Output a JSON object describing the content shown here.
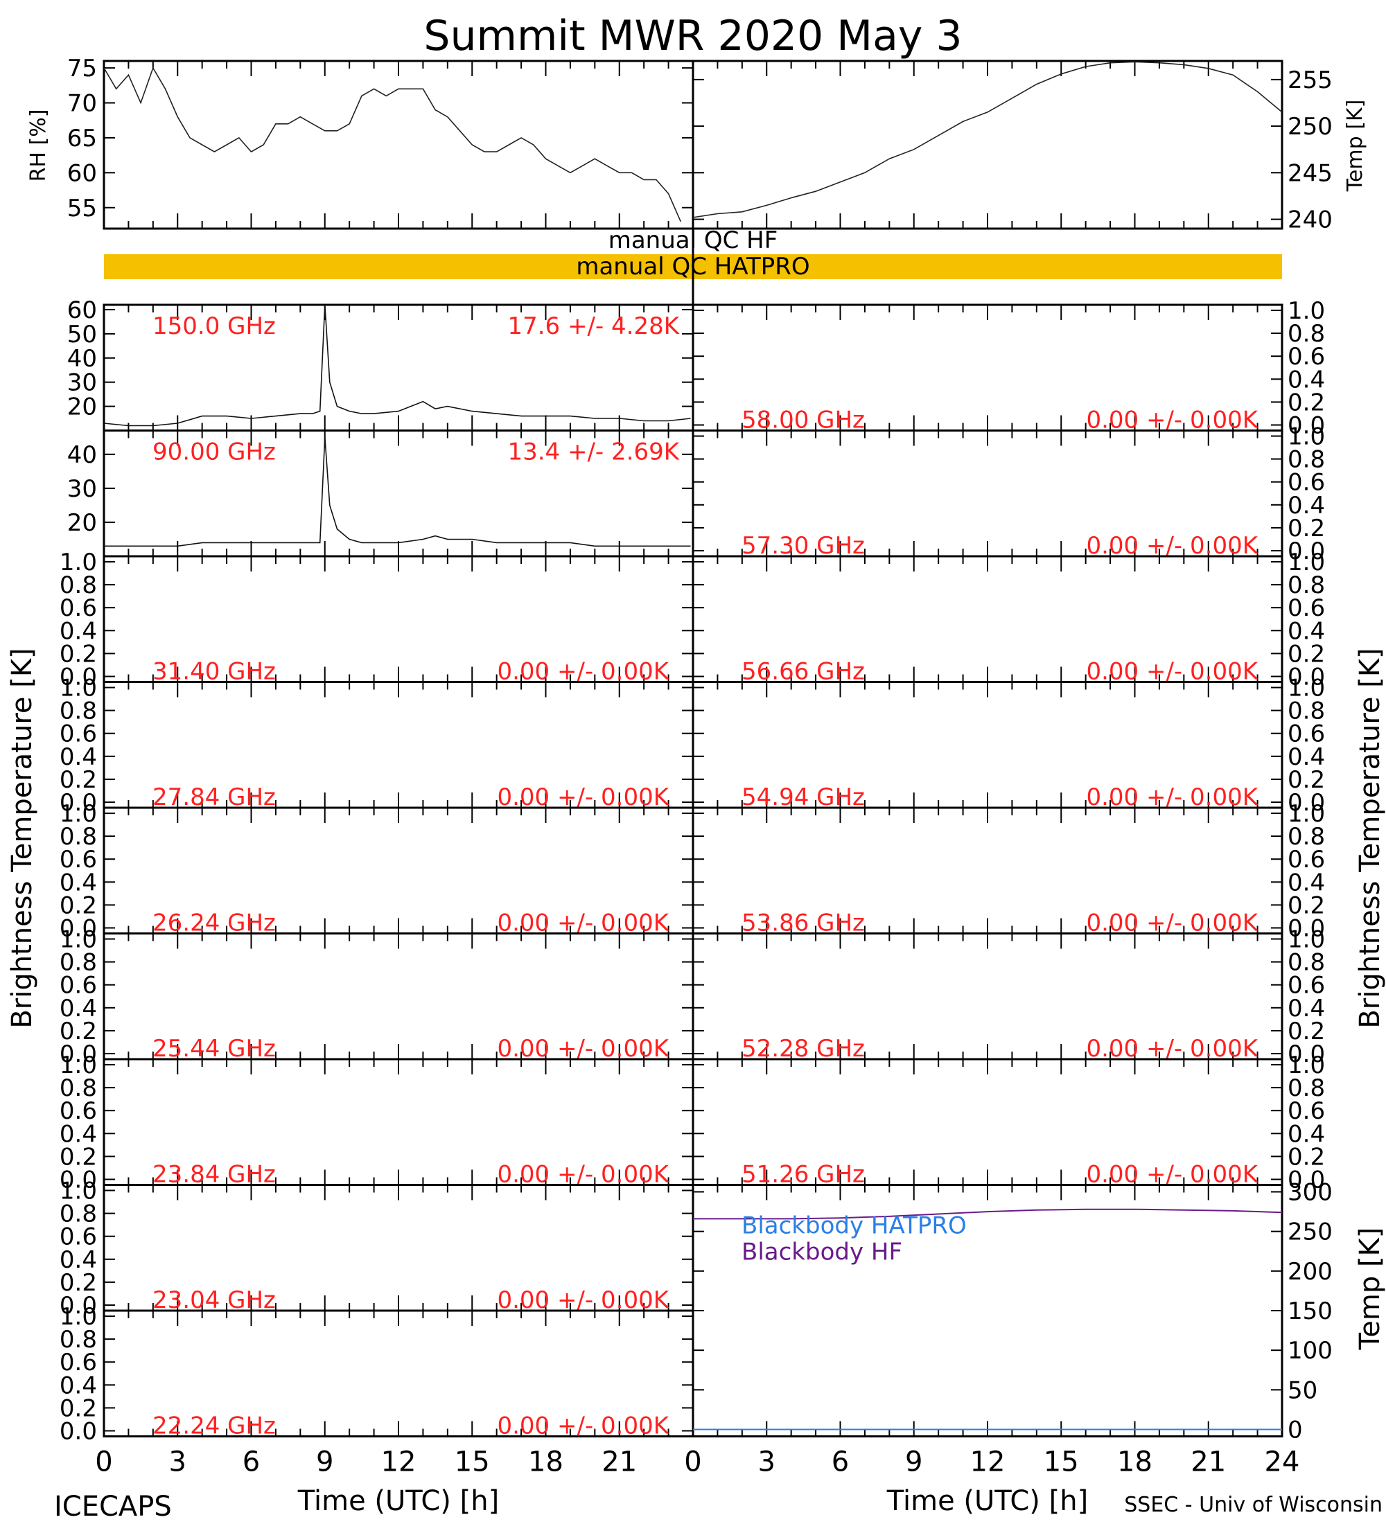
{
  "title": "Summit MWR 2020 May  3",
  "footer": {
    "left": "ICECAPS",
    "right": "SSEC - Univ of Wisconsin",
    "xlabel_left": "Time (UTC) [h]",
    "xlabel_right": "Time (UTC) [h]"
  },
  "qc": {
    "hf_label": "manual  QC  HF",
    "hatpro_label": "manual  QC  HATPRO",
    "hf_color": "#ffffff",
    "hatpro_color": "#f5c000"
  },
  "axis_labels": {
    "rh": "RH [%]",
    "temp_top": "Temp [K]",
    "tb_left": "Brightness Temperature [K]",
    "tb_right": "Brightness Temperature [K]",
    "temp_bb": "Temp [K]"
  },
  "x_ticks": [
    "0",
    "3",
    "6",
    "9",
    "12",
    "15",
    "18",
    "21"
  ],
  "x_ticks_right": [
    "0",
    "3",
    "6",
    "9",
    "12",
    "15",
    "18",
    "21",
    "24"
  ],
  "colors": {
    "channel_text": "#ff2020",
    "bb_hatpro": "#2a7fe8",
    "bb_hf": "#6a1a8a",
    "qc_bar": "#f5c000"
  },
  "left_channels": [
    {
      "freq": "150.0 GHz",
      "stats": "17.6 +/-  4.28K",
      "ylim": [
        10,
        62
      ],
      "ticks": [
        "60",
        "50",
        "40",
        "30",
        "20"
      ],
      "ticks_values": [
        60,
        50,
        40,
        30,
        20
      ]
    },
    {
      "freq": "90.00 GHz",
      "stats": "13.4 +/-  2.69K",
      "ylim": [
        10,
        47
      ],
      "ticks": [
        "40",
        "30",
        "20"
      ],
      "ticks_values": [
        40,
        30,
        20
      ]
    },
    {
      "freq": "31.40 GHz",
      "stats": "0.00 +/-  0.00K"
    },
    {
      "freq": "27.84 GHz",
      "stats": "0.00 +/-  0.00K"
    },
    {
      "freq": "26.24 GHz",
      "stats": "0.00 +/-  0.00K"
    },
    {
      "freq": "25.44 GHz",
      "stats": "0.00 +/-  0.00K"
    },
    {
      "freq": "23.84 GHz",
      "stats": "0.00 +/-  0.00K"
    },
    {
      "freq": "23.04 GHz",
      "stats": "0.00 +/-  0.00K"
    },
    {
      "freq": "22.24 GHz",
      "stats": "0.00 +/-  0.00K"
    }
  ],
  "right_channels": [
    {
      "freq": "58.00 GHz",
      "stats": "0.00 +/-  0.00K"
    },
    {
      "freq": "57.30 GHz",
      "stats": "0.00 +/-  0.00K"
    },
    {
      "freq": "56.66 GHz",
      "stats": "0.00 +/-  0.00K"
    },
    {
      "freq": "54.94 GHz",
      "stats": "0.00 +/-  0.00K"
    },
    {
      "freq": "53.86 GHz",
      "stats": "0.00 +/-  0.00K"
    },
    {
      "freq": "52.28 GHz",
      "stats": "0.00 +/-  0.00K"
    },
    {
      "freq": "51.26 GHz",
      "stats": "0.00 +/-  0.00K"
    }
  ],
  "unit_ticks": [
    "1.0",
    "0.8",
    "0.6",
    "0.4",
    "0.2",
    "0.0"
  ],
  "bb_legend": [
    "Blackbody HATPRO",
    "Blackbody HF"
  ],
  "chart_data": [
    {
      "type": "line",
      "title": "",
      "xlabel": "",
      "ylabel": "RH [%]",
      "xlim": [
        0,
        24
      ],
      "ylim": [
        52,
        76
      ],
      "yticks": [
        55,
        60,
        65,
        70,
        75
      ],
      "series": [
        {
          "name": "",
          "x": [
            0,
            0.5,
            1,
            1.5,
            2,
            2.5,
            3,
            3.5,
            4,
            4.5,
            5,
            5.5,
            6,
            6.5,
            7,
            7.5,
            8,
            8.5,
            9,
            9.5,
            10,
            10.5,
            11,
            11.5,
            12,
            12.5,
            13,
            13.5,
            14,
            14.5,
            15,
            15.5,
            16,
            16.5,
            17,
            17.5,
            18,
            18.5,
            19,
            19.5,
            20,
            20.5,
            21,
            21.5,
            22,
            22.5,
            23,
            23.5
          ],
          "y": [
            75,
            72,
            74,
            70,
            75,
            72,
            68,
            65,
            64,
            63,
            64,
            65,
            63,
            64,
            67,
            67,
            68,
            67,
            66,
            66,
            67,
            71,
            72,
            71,
            72,
            72,
            72,
            69,
            68,
            66,
            64,
            63,
            63,
            64,
            65,
            64,
            62,
            61,
            60,
            61,
            62,
            61,
            60,
            60,
            59,
            59,
            57,
            53
          ]
        }
      ]
    },
    {
      "type": "line",
      "title": "",
      "xlabel": "",
      "ylabel": "Temp [K]",
      "xlim": [
        0,
        24
      ],
      "ylim": [
        239,
        257
      ],
      "yticks": [
        240,
        245,
        250,
        255
      ],
      "series": [
        {
          "name": "",
          "x": [
            0,
            1,
            2,
            3,
            4,
            5,
            6,
            7,
            8,
            9,
            10,
            11,
            12,
            13,
            14,
            15,
            16,
            17,
            18,
            19,
            20,
            21,
            22,
            23,
            24
          ],
          "y": [
            240.2,
            240.6,
            240.8,
            241.5,
            242.3,
            243,
            244,
            245,
            246.5,
            247.5,
            249,
            250.5,
            251.5,
            253,
            254.5,
            255.6,
            256.4,
            256.8,
            256.9,
            256.8,
            256.6,
            256.2,
            255.5,
            253.7,
            251.5
          ]
        }
      ]
    },
    {
      "type": "line",
      "title": "",
      "xlabel": "",
      "ylabel": "Brightness Temperature [K]",
      "xlim": [
        0,
        24
      ],
      "ylim": [
        10,
        62
      ],
      "series": [
        {
          "name": "150.0 GHz",
          "x": [
            0,
            1,
            2,
            3,
            4,
            5,
            6,
            7,
            8,
            8.5,
            8.8,
            9,
            9.2,
            9.5,
            10,
            10.5,
            11,
            12,
            13,
            13.5,
            14,
            15,
            16,
            17,
            18,
            19,
            20,
            21,
            22,
            23,
            23.9
          ],
          "y": [
            13,
            12,
            12,
            13,
            16,
            16,
            15,
            16,
            17,
            17,
            18,
            62,
            30,
            20,
            18,
            17,
            17,
            18,
            22,
            19,
            20,
            18,
            17,
            16,
            16,
            16,
            15,
            15,
            14,
            14,
            15
          ]
        }
      ]
    },
    {
      "type": "line",
      "title": "",
      "xlabel": "",
      "ylabel": "Brightness Temperature [K]",
      "xlim": [
        0,
        24
      ],
      "ylim": [
        10,
        47
      ],
      "series": [
        {
          "name": "90.00 GHz",
          "x": [
            0,
            1,
            2,
            3,
            4,
            5,
            6,
            7,
            8,
            8.5,
            8.8,
            9,
            9.2,
            9.5,
            10,
            10.5,
            11,
            12,
            13,
            13.5,
            14,
            15,
            16,
            17,
            18,
            19,
            20,
            21,
            22,
            23,
            23.9
          ],
          "y": [
            13,
            13,
            13,
            13,
            14,
            14,
            14,
            14,
            14,
            14,
            14,
            45,
            25,
            18,
            15,
            14,
            14,
            14,
            15,
            16,
            15,
            15,
            14,
            14,
            14,
            14,
            13,
            13,
            13,
            13,
            13
          ]
        }
      ]
    },
    {
      "type": "line",
      "title": "",
      "xlabel": "Time (UTC) [h]",
      "ylabel": "Temp [K]",
      "xlim": [
        0,
        24
      ],
      "ylim": [
        0,
        300
      ],
      "yticks": [
        0,
        50,
        100,
        150,
        200,
        250,
        300
      ],
      "series": [
        {
          "name": "Blackbody HATPRO",
          "x": [
            0,
            24
          ],
          "y": [
            0,
            0
          ]
        },
        {
          "name": "Blackbody HF",
          "x": [
            0,
            2,
            4,
            6,
            8,
            10,
            12,
            14,
            16,
            18,
            20,
            22,
            24
          ],
          "y": [
            266,
            266,
            266,
            267,
            269,
            272,
            275,
            277,
            278,
            278,
            277,
            276,
            274
          ]
        }
      ]
    }
  ]
}
